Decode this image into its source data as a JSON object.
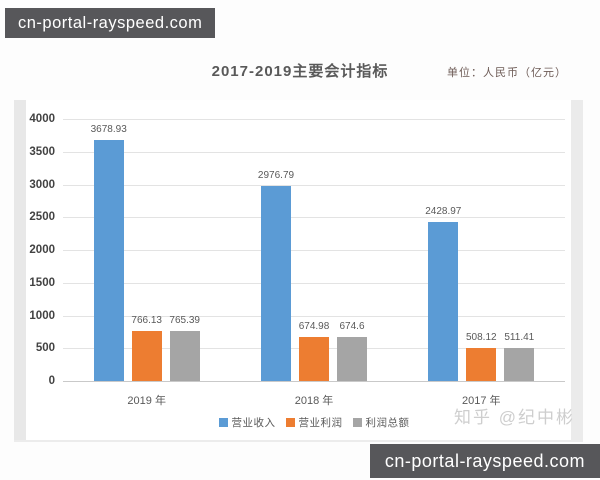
{
  "watermarks": {
    "top_left": "cn-portal-rayspeed.com",
    "bottom_right": "cn-portal-rayspeed.com",
    "chart_credit": "知乎 @纪中彬"
  },
  "header": {
    "title": "2017-2019主要会计指标",
    "unit_label": "单位：人民币（亿元）"
  },
  "chart_data": {
    "type": "bar",
    "title": "2017-2019主要会计指标",
    "unit_label": "单位：人民币（亿元）",
    "categories": [
      "2019 年",
      "2018 年",
      "2017 年"
    ],
    "series": [
      {
        "name": "营业收入",
        "color": "#5b9bd5",
        "values": [
          3678.93,
          2976.79,
          2428.97
        ]
      },
      {
        "name": "营业利润",
        "color": "#ed7d31",
        "values": [
          766.13,
          674.98,
          508.12
        ]
      },
      {
        "name": "利润总额",
        "color": "#a5a5a5",
        "values": [
          765.39,
          674.6,
          511.41
        ]
      }
    ],
    "ylim": [
      0,
      4000
    ],
    "ytick_step": 500,
    "yticks": [
      0,
      500,
      1000,
      1500,
      2000,
      2500,
      3000,
      3500,
      4000
    ],
    "grid": true,
    "legend_position": "bottom",
    "data_labels": true,
    "colors": {
      "grid": "#e3e3e3",
      "axis": "#c9c9c9",
      "text": "#595959"
    }
  }
}
